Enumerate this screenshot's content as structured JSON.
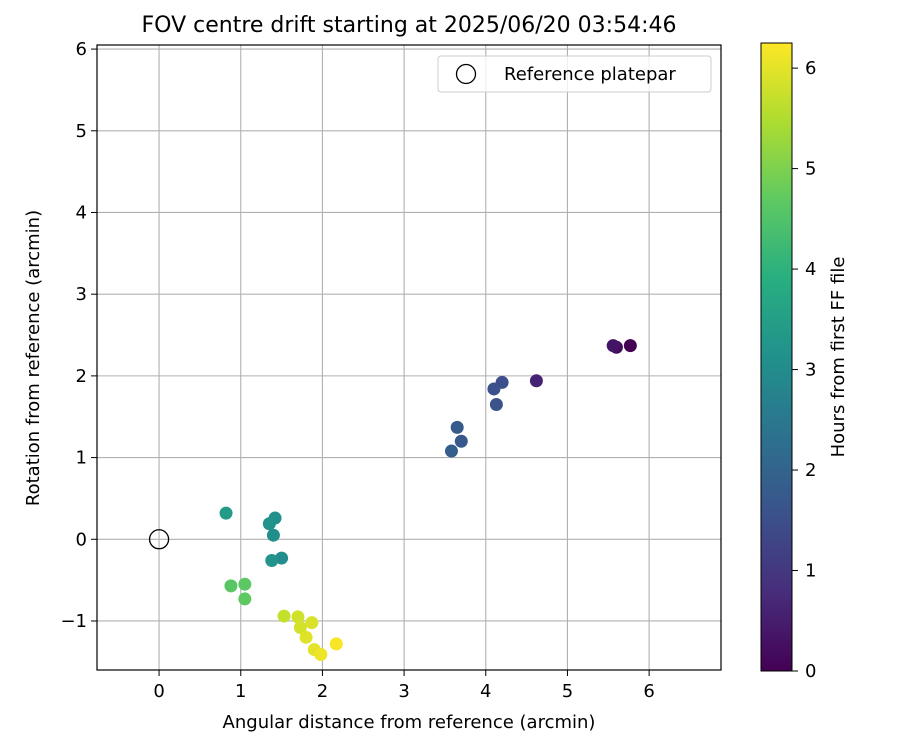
{
  "chart_data": {
    "type": "scatter",
    "title": "FOV centre drift starting at 2025/06/20 03:54:46",
    "xlabel": "Angular distance from reference (arcmin)",
    "ylabel": "Rotation from reference (arcmin)",
    "xlim": [
      -0.76,
      6.88
    ],
    "ylim": [
      -1.6,
      6.05
    ],
    "xticks": [
      0,
      1,
      2,
      3,
      4,
      5,
      6
    ],
    "yticks": [
      -1,
      0,
      1,
      2,
      3,
      4,
      5,
      6
    ],
    "grid": true,
    "legend_position": "top-right",
    "reference": {
      "label": "Reference platepar",
      "x": 0,
      "y": 0
    },
    "colorbar": {
      "label": "Hours from first FF file",
      "colormap": "viridis",
      "range": [
        0,
        6.25
      ],
      "ticks": [
        0,
        1,
        2,
        3,
        4,
        5,
        6
      ]
    },
    "points": [
      {
        "x": 5.77,
        "y": 2.37,
        "hours": 0.0
      },
      {
        "x": 5.6,
        "y": 2.35,
        "hours": 0.2
      },
      {
        "x": 5.56,
        "y": 2.37,
        "hours": 0.35
      },
      {
        "x": 4.62,
        "y": 1.94,
        "hours": 0.6
      },
      {
        "x": 4.2,
        "y": 1.92,
        "hours": 1.5
      },
      {
        "x": 4.1,
        "y": 1.84,
        "hours": 1.55
      },
      {
        "x": 4.13,
        "y": 1.65,
        "hours": 1.6
      },
      {
        "x": 3.7,
        "y": 1.2,
        "hours": 1.7
      },
      {
        "x": 3.65,
        "y": 1.37,
        "hours": 1.75
      },
      {
        "x": 3.58,
        "y": 1.08,
        "hours": 1.85
      },
      {
        "x": 1.5,
        "y": -0.23,
        "hours": 3.0
      },
      {
        "x": 1.4,
        "y": 0.05,
        "hours": 3.05
      },
      {
        "x": 1.42,
        "y": 0.26,
        "hours": 3.1
      },
      {
        "x": 1.35,
        "y": 0.19,
        "hours": 3.15
      },
      {
        "x": 1.38,
        "y": -0.26,
        "hours": 3.2
      },
      {
        "x": 0.82,
        "y": 0.32,
        "hours": 3.4
      },
      {
        "x": 0.88,
        "y": -0.57,
        "hours": 4.6
      },
      {
        "x": 1.05,
        "y": -0.55,
        "hours": 4.65
      },
      {
        "x": 1.05,
        "y": -0.73,
        "hours": 4.7
      },
      {
        "x": 1.53,
        "y": -0.94,
        "hours": 5.7
      },
      {
        "x": 1.7,
        "y": -0.95,
        "hours": 5.8
      },
      {
        "x": 1.73,
        "y": -1.08,
        "hours": 5.85
      },
      {
        "x": 1.87,
        "y": -1.02,
        "hours": 5.9
      },
      {
        "x": 1.8,
        "y": -1.2,
        "hours": 5.95
      },
      {
        "x": 1.9,
        "y": -1.35,
        "hours": 6.0
      },
      {
        "x": 1.98,
        "y": -1.41,
        "hours": 6.1
      },
      {
        "x": 2.17,
        "y": -1.28,
        "hours": 6.2
      }
    ]
  }
}
